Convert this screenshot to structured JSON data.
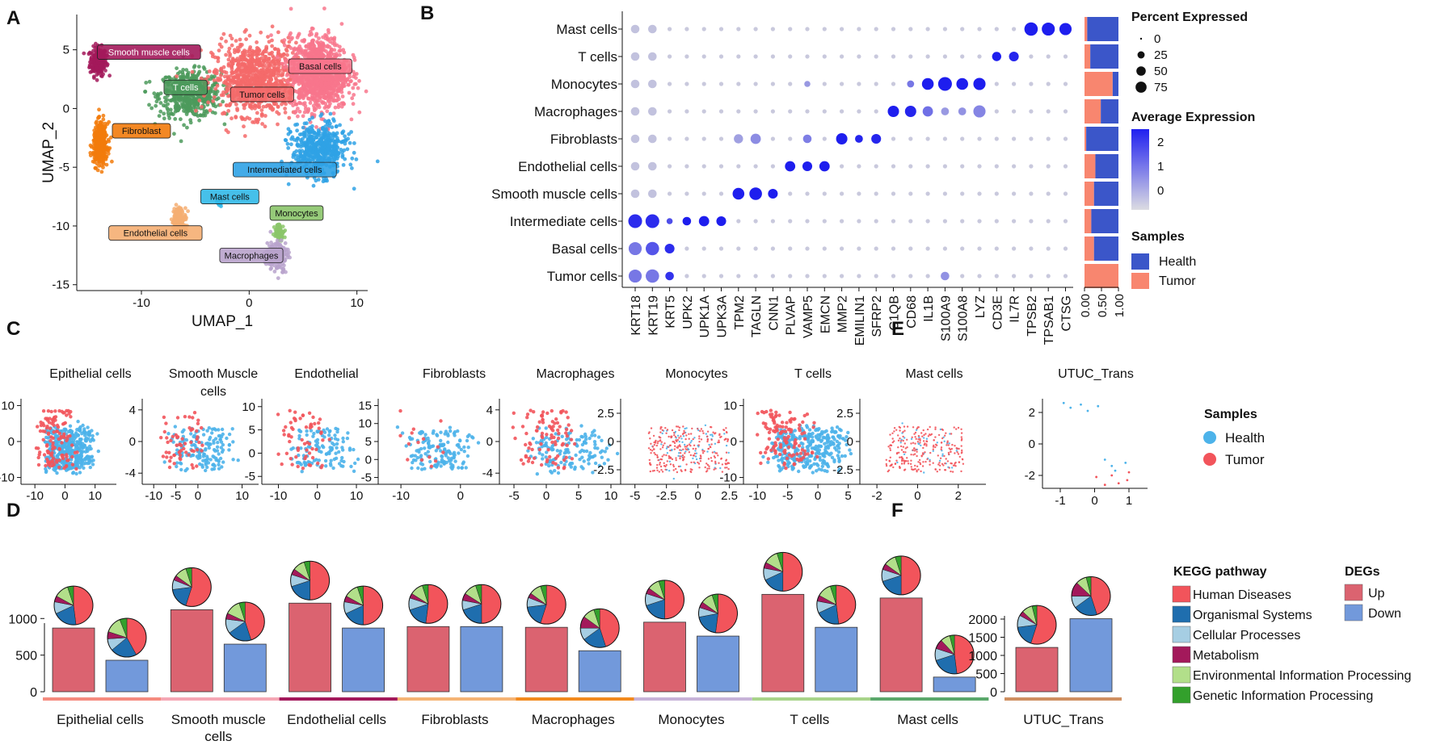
{
  "chart_data": [
    {
      "panel": "A",
      "type": "scatter",
      "xlabel": "UMAP_1",
      "ylabel": "UMAP_2",
      "xticks": [
        -10,
        0,
        10
      ],
      "yticks": [
        5,
        0,
        -5,
        -10,
        -15
      ],
      "xlim": [
        -16,
        11
      ],
      "ylim": [
        -15.5,
        8
      ],
      "clusters": [
        {
          "label": "Smooth muscle cells",
          "color": "#A3195B",
          "cx": -14,
          "cy": 4,
          "sx": 0.7,
          "sy": 1.1,
          "n": 220,
          "lx": -9.3,
          "ly": 4.8
        },
        {
          "label": "T cells",
          "color": "#4C9A5C",
          "cx": -5.5,
          "cy": 1.2,
          "sx": 2.6,
          "sy": 1.8,
          "n": 500,
          "lx": -5.9,
          "ly": 1.8
        },
        {
          "label": "Tumor cells",
          "color": "#F46A6A",
          "cx": 0.5,
          "cy": 2.5,
          "sx": 3.5,
          "sy": 2.8,
          "n": 900,
          "lx": 1.2,
          "ly": 1.2
        },
        {
          "label": "Basal cells",
          "color": "#F8768C",
          "cx": 6.5,
          "cy": 3,
          "sx": 2.4,
          "sy": 2.8,
          "n": 1100,
          "lx": 6.6,
          "ly": 3.6
        },
        {
          "label": "Fibroblast",
          "color": "#F27B0C",
          "cx": -13.8,
          "cy": -3,
          "sx": 0.6,
          "sy": 1.6,
          "n": 380,
          "lx": -10,
          "ly": -1.9
        },
        {
          "label": "Intermediated cells",
          "color": "#2FA2E5",
          "cx": 6.5,
          "cy": -3.5,
          "sx": 2.3,
          "sy": 2.0,
          "n": 520,
          "lx": 3.3,
          "ly": -5.2
        },
        {
          "label": "Mast cells",
          "color": "#32B9E8",
          "cx": -2.8,
          "cy": -8,
          "sx": 0.3,
          "sy": 0.3,
          "n": 20,
          "lx": -1.8,
          "ly": -7.5
        },
        {
          "label": "Monocytes",
          "color": "#8BC56A",
          "cx": 2.8,
          "cy": -10.5,
          "sx": 0.4,
          "sy": 0.6,
          "n": 70,
          "lx": 4.4,
          "ly": -8.9
        },
        {
          "label": "Endothelial cells",
          "color": "#F5AE72",
          "cx": -6.5,
          "cy": -9.5,
          "sx": 0.6,
          "sy": 1.0,
          "n": 160,
          "lx": -8.7,
          "ly": -10.6
        },
        {
          "label": "Macrophages",
          "color": "#B9A3CC",
          "cx": 2.6,
          "cy": -12.5,
          "sx": 0.9,
          "sy": 1.2,
          "n": 180,
          "lx": 0.2,
          "ly": -12.5
        }
      ]
    },
    {
      "panel": "B",
      "type": "dotplot",
      "cell_types": [
        "Mast cells",
        "T cells",
        "Monocytes",
        "Macrophages",
        "Fibroblasts",
        "Endothelial cells",
        "Smooth muscle cells",
        "Intermediate cells",
        "Basal cells",
        "Tumor cells"
      ],
      "genes": [
        "KRT18",
        "KRT19",
        "KRT5",
        "UPK2",
        "UPK1A",
        "UPK3A",
        "TPM2",
        "TAGLN",
        "CNN1",
        "PLVAP",
        "VAMP5",
        "EMCN",
        "MMP2",
        "EMILIN1",
        "SFRP2",
        "C1QB",
        "CD68",
        "IL1B",
        "S100A9",
        "S100A8",
        "LYZ",
        "CD3E",
        "IL7R",
        "TPSB2",
        "TPSAB1",
        "CTSG"
      ],
      "strong_dots": [
        {
          "cell": "Mast cells",
          "gene": "TPSB2",
          "pct": 75,
          "avg": 2.2
        },
        {
          "cell": "Mast cells",
          "gene": "TPSAB1",
          "pct": 70,
          "avg": 2.2
        },
        {
          "cell": "Mast cells",
          "gene": "CTSG",
          "pct": 60,
          "avg": 2.2
        },
        {
          "cell": "T cells",
          "gene": "CD3E",
          "pct": 30,
          "avg": 2.2
        },
        {
          "cell": "T cells",
          "gene": "IL7R",
          "pct": 35,
          "avg": 2.1
        },
        {
          "cell": "Monocytes",
          "gene": "CD68",
          "pct": 15,
          "avg": 0.9
        },
        {
          "cell": "Monocytes",
          "gene": "IL1B",
          "pct": 55,
          "avg": 2.2
        },
        {
          "cell": "Monocytes",
          "gene": "S100A9",
          "pct": 80,
          "avg": 2.3
        },
        {
          "cell": "Monocytes",
          "gene": "S100A8",
          "pct": 55,
          "avg": 2.2
        },
        {
          "cell": "Monocytes",
          "gene": "LYZ",
          "pct": 60,
          "avg": 2.2
        },
        {
          "cell": "Monocytes",
          "gene": "VAMP5",
          "pct": 10,
          "avg": 0.4
        },
        {
          "cell": "Macrophages",
          "gene": "C1QB",
          "pct": 50,
          "avg": 2.2
        },
        {
          "cell": "Macrophages",
          "gene": "CD68",
          "pct": 50,
          "avg": 2.1
        },
        {
          "cell": "Macrophages",
          "gene": "IL1B",
          "pct": 40,
          "avg": 1.0
        },
        {
          "cell": "Macrophages",
          "gene": "S100A9",
          "pct": 20,
          "avg": 0.4
        },
        {
          "cell": "Macrophages",
          "gene": "S100A8",
          "pct": 20,
          "avg": 0.5
        },
        {
          "cell": "Macrophages",
          "gene": "LYZ",
          "pct": 60,
          "avg": 0.7
        },
        {
          "cell": "Fibroblasts",
          "gene": "TPM2",
          "pct": 30,
          "avg": 0.3
        },
        {
          "cell": "Fibroblasts",
          "gene": "TAGLN",
          "pct": 40,
          "avg": 0.6
        },
        {
          "cell": "Fibroblasts",
          "gene": "VAMP5",
          "pct": 25,
          "avg": 0.8
        },
        {
          "cell": "Fibroblasts",
          "gene": "MMP2",
          "pct": 50,
          "avg": 2.2
        },
        {
          "cell": "Fibroblasts",
          "gene": "EMILIN1",
          "pct": 20,
          "avg": 2.1
        },
        {
          "cell": "Fibroblasts",
          "gene": "SFRP2",
          "pct": 35,
          "avg": 2.1
        },
        {
          "cell": "Endothelial cells",
          "gene": "PLVAP",
          "pct": 40,
          "avg": 2.2
        },
        {
          "cell": "Endothelial cells",
          "gene": "VAMP5",
          "pct": 35,
          "avg": 2.2
        },
        {
          "cell": "Endothelial cells",
          "gene": "EMCN",
          "pct": 40,
          "avg": 2.2
        },
        {
          "cell": "Smooth muscle cells",
          "gene": "TPM2",
          "pct": 55,
          "avg": 2.2
        },
        {
          "cell": "Smooth muscle cells",
          "gene": "TAGLN",
          "pct": 65,
          "avg": 2.2
        },
        {
          "cell": "Smooth muscle cells",
          "gene": "CNN1",
          "pct": 35,
          "avg": 2.2
        },
        {
          "cell": "Intermediate cells",
          "gene": "KRT18",
          "pct": 80,
          "avg": 2.0
        },
        {
          "cell": "Intermediate cells",
          "gene": "KRT19",
          "pct": 80,
          "avg": 2.0
        },
        {
          "cell": "Intermediate cells",
          "gene": "KRT5",
          "pct": 10,
          "avg": 1.5
        },
        {
          "cell": "Intermediate cells",
          "gene": "UPK2",
          "pct": 25,
          "avg": 2.2
        },
        {
          "cell": "Intermediate cells",
          "gene": "UPK1A",
          "pct": 40,
          "avg": 2.2
        },
        {
          "cell": "Intermediate cells",
          "gene": "UPK3A",
          "pct": 35,
          "avg": 2.2
        },
        {
          "cell": "Basal cells",
          "gene": "KRT18",
          "pct": 70,
          "avg": 0.9
        },
        {
          "cell": "Basal cells",
          "gene": "KRT19",
          "pct": 75,
          "avg": 1.4
        },
        {
          "cell": "Basal cells",
          "gene": "KRT5",
          "pct": 35,
          "avg": 2.0
        },
        {
          "cell": "Tumor cells",
          "gene": "KRT18",
          "pct": 70,
          "avg": 0.9
        },
        {
          "cell": "Tumor cells",
          "gene": "KRT19",
          "pct": 75,
          "avg": 0.9
        },
        {
          "cell": "Tumor cells",
          "gene": "KRT5",
          "pct": 25,
          "avg": 1.9
        },
        {
          "cell": "Tumor cells",
          "gene": "S100A9",
          "pct": 25,
          "avg": 0.5
        }
      ],
      "bar_fraction_tumor": [
        0.08,
        0.17,
        0.83,
        0.48,
        0.05,
        0.32,
        0.28,
        0.2,
        0.28,
        1.0
      ],
      "bar_xticks": [
        "0.00",
        "0.50",
        "1.00"
      ],
      "legend": {
        "pct_title": "Percent Expressed",
        "pct_values": [
          0,
          25,
          50,
          75
        ],
        "avg_title": "Average Expression",
        "avg_ticks": [
          2,
          1,
          0
        ],
        "samples_title": "Samples",
        "samples": [
          "Health",
          "Tumor"
        ]
      }
    },
    {
      "panel": "C",
      "type": "scatter",
      "subplots": [
        {
          "title": "Epithelial cells",
          "xticks": [
            -10,
            0,
            10
          ],
          "yticks": [
            10,
            0,
            -10
          ]
        },
        {
          "title": "Smooth Muscle cells",
          "xticks": [
            -10,
            -5,
            0,
            10
          ],
          "yticks": [
            4,
            0,
            -4
          ]
        },
        {
          "title": "Endothelial",
          "xticks": [
            -10,
            0,
            10
          ],
          "yticks": [
            10,
            5,
            0,
            -5
          ]
        },
        {
          "title": "Fibroblasts",
          "xticks": [
            -10,
            0
          ],
          "yticks": [
            15,
            10,
            5,
            0,
            -5
          ]
        },
        {
          "title": "Macrophages",
          "xticks": [
            -5,
            0,
            5,
            10
          ],
          "yticks": [
            4,
            0,
            -4
          ]
        },
        {
          "title": "Monocytes",
          "xticks": [
            -5,
            -2.5,
            0,
            2.5
          ],
          "yticks": [
            2.5,
            0,
            -2.5
          ]
        },
        {
          "title": "T cells",
          "xticks": [
            -10,
            -5,
            0,
            5
          ],
          "yticks": [
            10,
            0,
            -10
          ]
        },
        {
          "title": "Mast cells",
          "xticks": [
            -2,
            0,
            2
          ],
          "yticks": [
            2.5,
            0,
            -2.5
          ]
        }
      ],
      "legend": {
        "title": "Samples",
        "items": [
          "Health",
          "Tumor"
        ]
      }
    },
    {
      "panel": "E",
      "type": "scatter",
      "title": "UTUC_Trans",
      "xticks": [
        -1,
        0,
        1
      ],
      "yticks": [
        2,
        0,
        -2
      ]
    },
    {
      "panel": "D",
      "type": "bar",
      "categories": [
        "Epithelial cells",
        "Smooth muscle cells",
        "Endothelial cells",
        "Fibroblasts",
        "Macrophages",
        "Monocytes",
        "T cells",
        "Mast cells"
      ],
      "series": [
        {
          "name": "Up",
          "values": [
            870,
            1120,
            1210,
            890,
            880,
            950,
            1330,
            1280
          ]
        },
        {
          "name": "Down",
          "values": [
            430,
            650,
            870,
            890,
            560,
            760,
            880,
            200
          ]
        }
      ],
      "yticks": [
        0,
        500,
        1000
      ],
      "ylim": [
        0,
        1400
      ],
      "category_colors": [
        "#F58B7F",
        "#F5A7B5",
        "#A3195B",
        "#F5B475",
        "#F28A1E",
        "#C7B3D8",
        "#A8D48A",
        "#5BA86B"
      ]
    },
    {
      "panel": "F",
      "type": "bar",
      "categories": [
        "UTUC_Trans"
      ],
      "series": [
        {
          "name": "Up",
          "values": [
            1220
          ]
        },
        {
          "name": "Down",
          "values": [
            2010
          ]
        }
      ],
      "yticks": [
        0,
        500,
        1000,
        1500,
        2000
      ],
      "ylim": [
        0,
        2100
      ],
      "kegg_title": "KEGG pathway",
      "kegg": [
        "Human Diseases",
        "Organismal Systems",
        "Cellular Processes",
        "Metabolism",
        "Environmental Information Processing",
        "Genetic Information Processing"
      ],
      "kegg_colors": [
        "#F2545B",
        "#1F6EAE",
        "#A6CEE3",
        "#A3195B",
        "#B2DF8A",
        "#33A02C"
      ],
      "degs_title": "DEGs",
      "degs": [
        "Up",
        "Down"
      ],
      "pie_fractions": [
        0.55,
        0.18,
        0.1,
        0.04,
        0.09,
        0.04
      ]
    }
  ],
  "panel_labels": [
    "A",
    "B",
    "C",
    "D",
    "E",
    "F"
  ],
  "colors": {
    "health": "#4DB3EA",
    "tumor": "#F2545B",
    "up": "#DB6370",
    "down": "#7299DB",
    "health_bar": "#3B56C9",
    "tumor_bar": "#F8866F"
  }
}
